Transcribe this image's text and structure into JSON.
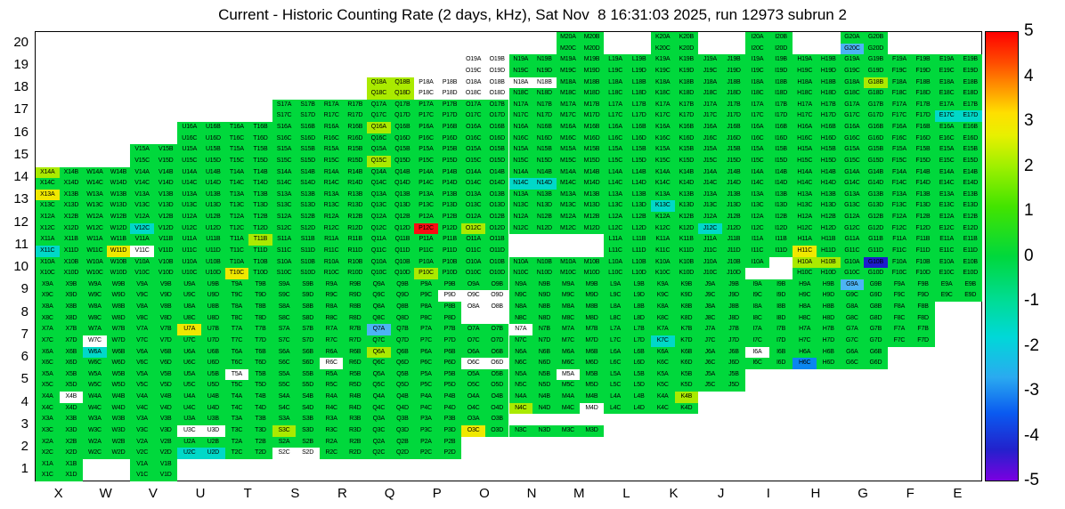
{
  "chart_data": {
    "type": "heatmap",
    "title": "Current - Historic Counting Rate (2 days, kHz), Sat Nov  8 16:31:03 2025, run 12973 subrun 2",
    "x_labels": [
      "X",
      "W",
      "V",
      "U",
      "T",
      "S",
      "R",
      "Q",
      "P",
      "O",
      "N",
      "M",
      "L",
      "K",
      "J",
      "I",
      "H",
      "G",
      "F",
      "E"
    ],
    "y_labels": [
      "20",
      "19",
      "18",
      "17",
      "16",
      "15",
      "14",
      "13",
      "12",
      "11",
      "10",
      "9",
      "8",
      "7",
      "6",
      "5",
      "4",
      "3",
      "2",
      "1"
    ],
    "colorbar": {
      "min": -5,
      "max": 5,
      "ticks": [
        "5",
        "4",
        "3",
        "2",
        "1",
        "0",
        "-1",
        "-2",
        "-3",
        "-4",
        "-5"
      ]
    },
    "palette": {
      "G": "#00d83c",
      "g": "#aaea00",
      "Y": "#f0e800",
      "C": "#00d8c8",
      "S": "#4cb4f4",
      "B": "#0a86f0",
      "D": "#1d1ccd",
      "R": "#fb0d12",
      "W": "#ffffff"
    },
    "code_legend": {
      "G": "rate diff ~0 (green)",
      "g": "~+1 (yellow-green)",
      "Y": "~+2 (yellow)",
      "C": "~-1.5 (cyan)",
      "S": "~-2 (light blue)",
      "B": "~-2.5 (blue)",
      "D": "~-4 (dark blue)",
      "R": "~+5 (red)",
      "W": "no data (white, label shown)",
      "_": "empty (white, no label)"
    },
    "quadrant_order": [
      "A",
      "B",
      "C",
      "D"
    ],
    "cells": [
      "M20 GGGG",
      "K20 GGGG",
      "I20 GGGG",
      "G20 GGSG",
      "O19 WWWW",
      "N19 GGGG",
      "M19 GGGG",
      "L19 GGGG",
      "K19 GGGG",
      "J19 GGGG",
      "I19 GGGG",
      "H19 GGGG",
      "G19 GGGG",
      "F19 GGGG",
      "E19 GGGG",
      "Q18 gggg",
      "P18 WWWW",
      "O18 WWWW",
      "N18 WWGG",
      "M18 GGGG",
      "L18 GGGG",
      "K18 GGGG",
      "J18 GGGG",
      "I18 GGGG",
      "H18 GGGG",
      "G18 GgGG",
      "F18 GGGG",
      "E18 GGGG",
      "S17 GGGG",
      "R17 GGGG",
      "Q17 GGGG",
      "P17 GGGG",
      "O17 GGGG",
      "N17 GGGG",
      "M17 GGGG",
      "L17 GGGG",
      "K17 GGGG",
      "J17 GGGG",
      "I17 GGGG",
      "H17 GGGG",
      "G17 GGGG",
      "F17 GGGG",
      "E17 GGCC",
      "U16 GGGG",
      "T16 GGGG",
      "S16 GGGG",
      "R16 GGGG",
      "Q16 gGGG",
      "P16 GGGG",
      "O16 GGGG",
      "N16 GGGG",
      "M16 GGGG",
      "L16 GGGG",
      "K16 GGGG",
      "J16 GGGG",
      "I16 GGGG",
      "H16 GGGG",
      "G16 GGGG",
      "F16 GGGG",
      "E16 GGGG",
      "V15 GGGG",
      "U15 GGGG",
      "T15 GGGG",
      "S15 GGGG",
      "R15 GGGG",
      "Q15 GGgG",
      "P15 GGGG",
      "O15 GGGG",
      "N15 GGGG",
      "M15 GGGG",
      "L15 GGGG",
      "K15 GGGG",
      "J15 GGGG",
      "I15 GGGG",
      "H15 GGGG",
      "G15 GGGG",
      "F15 GGGG",
      "E15 GGGG",
      "X14 gGGG",
      "W14 GGGG",
      "V14 GGGG",
      "U14 GGGG",
      "T14 GGGG",
      "S14 GGGG",
      "R14 GGGG",
      "Q14 GGGG",
      "P14 GGGG",
      "O14 GGGG",
      "N14 GGCC",
      "M14 GGGG",
      "L14 GGGG",
      "K14 GGGG",
      "J14 GGGG",
      "I14 GGGG",
      "H14 GGGG",
      "G14 GGGG",
      "F14 GGGG",
      "E14 GGGG",
      "X13 YGGG",
      "W13 GGGG",
      "V13 GGGG",
      "U13 GGGG",
      "T13 GGGG",
      "S13 GGGG",
      "R13 GGGG",
      "Q13 GGGG",
      "P13 GGGG",
      "O13 GGGG",
      "N13 GGGG",
      "M13 GGGG",
      "L13 GGGG",
      "K13 GGCG",
      "J13 GGGG",
      "I13 GGGG",
      "H13 GGGG",
      "G13 GGGG",
      "F13 GGGG",
      "E13 GGGG",
      "X12 GGGG",
      "W12 GGGG",
      "V12 GGCG",
      "U12 GGGG",
      "T12 GGGG",
      "S12 GGGG",
      "R12 GGGG",
      "Q12 GGGG",
      "P12 GGRG",
      "O12 GGgG",
      "N12 GGGG",
      "M12 GGGG",
      "L12 GGGG",
      "K12 GGGG",
      "J12 GGCG",
      "I12 GGGG",
      "H12 GGGG",
      "G12 GGGG",
      "F12 GGGG",
      "E12 GGGG",
      "X11 GGCG",
      "W11 GGGY",
      "V11 GGWG",
      "U11 GGGG",
      "T11 GgGG",
      "S11 GGGG",
      "R11 GGGG",
      "Q11 GGGG",
      "P11 GGGG",
      "O11 GGGG",
      "L11 GGGG",
      "K11 GGGG",
      "J11 GGGG",
      "I11 GGGG",
      "H11 GGYG",
      "G11 GGGG",
      "F11 GGGG",
      "E11 GGGG",
      "X10 GGGG",
      "W10 GGGG",
      "V10 GGGG",
      "U10 GGGG",
      "T10 GGYG",
      "S10 GGGG",
      "R10 GGGG",
      "Q10 GGGG",
      "P10 GGgG",
      "O10 GGGG",
      "N10 GGGG",
      "M10 GGGG",
      "L10 GGGG",
      "K10 GGGG",
      "J10 GGGG",
      "I10 G___",
      "H10 ggGG",
      "G10 GDGG",
      "F10 GGGG",
      "E10 GGGG",
      "X9 GGGG",
      "W9 GGGG",
      "V9 GGGG",
      "U9 GGGG",
      "T9 GGGG",
      "S9 GGGG",
      "R9 GGGG",
      "Q9 GGGG",
      "P9 GGGW",
      "O9 GGWW",
      "N9 GGGG",
      "M9 GGGG",
      "L9 GGGG",
      "K9 GGGG",
      "J9 GGGG",
      "I9 GGGG",
      "H9 GGGG",
      "G9 SGGG",
      "F9 GGGG",
      "E9 GGGG",
      "X8 GGGG",
      "W8 GGGG",
      "V8 GGGG",
      "U8 GGGG",
      "T8 GGGG",
      "S8 GGGG",
      "R8 GGGG",
      "Q8 GGGG",
      "P8 GGGG",
      "O8 WW__",
      "N8 GGGG",
      "M8 GGGG",
      "L8 GGGG",
      "K8 GGGG",
      "J8 GGGG",
      "I8 GGGG",
      "H8 GGGG",
      "G8 GGGG",
      "F8 GGGG",
      "X7 GGGG",
      "W7 GGWG",
      "V7 GGGG",
      "U7 YGGG",
      "T7 GGGG",
      "S7 GGGG",
      "R7 GGGG",
      "Q7 SGGG",
      "P7 GGGG",
      "O7 GGGG",
      "N7 WGGG",
      "M7 GGGG",
      "L7 GGGG",
      "K7 GGCG",
      "J7 GGGG",
      "I7 GGGG",
      "H7 GGGG",
      "G7 GGGG",
      "F7 GGGG",
      "X6 GGGG",
      "W6 CGGG",
      "V6 GGGG",
      "U6 GGGG",
      "T6 GGGG",
      "S6 GGGG",
      "R6 GGWG",
      "Q6 gGGG",
      "P6 GGGG",
      "O6 GGWW",
      "N6 GGGG",
      "M6 GGGG",
      "L6 GGGG",
      "K6 GGGG",
      "J6 GGGG",
      "I6 WGGG",
      "H6 GGBG",
      "G6 GGGG",
      "X5 GGGG",
      "W5 GGGG",
      "V5 GGGG",
      "U5 GGGG",
      "T5 WGGG",
      "S5 GGGG",
      "R5 GGGG",
      "Q5 GGGG",
      "P5 GGGG",
      "O5 GGGG",
      "N5 GGGG",
      "M5 WGGG",
      "L5 GGGG",
      "K5 GGGG",
      "J5 GGGG",
      "X4 GWGG",
      "W4 GGGG",
      "V4 GGGG",
      "U4 GGGG",
      "T4 GGGG",
      "S4 GGGG",
      "R4 GGGG",
      "Q4 GGGG",
      "P4 GGGG",
      "O4 GGGG",
      "N4 GGgG",
      "M4 GGGW",
      "L4 GGGG",
      "K4 GgGG",
      "X3 GGGG",
      "W3 GGGG",
      "V3 GGGG",
      "U3 GGWW",
      "T3 GGGG",
      "S3 GGgG",
      "R3 GGGG",
      "Q3 GGGG",
      "P3 GGGG",
      "O3 GGYG",
      "N3 __GG",
      "M3 __GG",
      "X2 GGGG",
      "W2 GGGG",
      "V2 GGGG",
      "U2 GGCC",
      "T2 GGGG",
      "S2 GGWW",
      "R2 GGGG",
      "Q2 GGGG",
      "P2 GGGG",
      "X1 GGGG",
      "V1 GGGG"
    ]
  }
}
